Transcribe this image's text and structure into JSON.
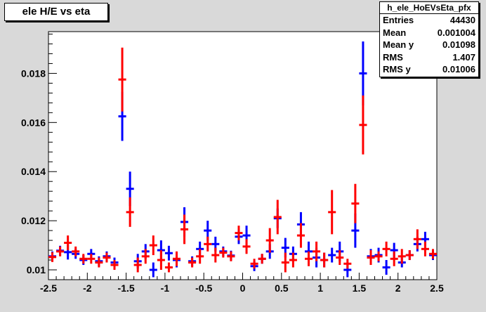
{
  "chart_data": {
    "type": "scatter",
    "title": "ele H/E vs eta",
    "xlabel": "",
    "ylabel": "",
    "xlim": [
      -2.5,
      2.5
    ],
    "ylim": [
      0.0096,
      0.0197
    ],
    "xticks": [
      "-2.5",
      "-2",
      "-1.5",
      "-1",
      "-0.5",
      "0",
      "0.5",
      "1",
      "1.5",
      "2",
      "2.5"
    ],
    "yticks": [
      "0.01",
      "0.012",
      "0.014",
      "0.016",
      "0.018"
    ],
    "grid": false,
    "legend": "none",
    "series": [
      {
        "color": "#0000ff",
        "points": [
          {
            "x": -2.45,
            "y": 0.01055,
            "e": 0.0002
          },
          {
            "x": -2.35,
            "y": 0.01078,
            "e": 0.0002
          },
          {
            "x": -2.25,
            "y": 0.01072,
            "e": 0.0003
          },
          {
            "x": -2.15,
            "y": 0.01065,
            "e": 0.0002
          },
          {
            "x": -2.05,
            "y": 0.0104,
            "e": 0.0002
          },
          {
            "x": -1.95,
            "y": 0.01065,
            "e": 0.0002
          },
          {
            "x": -1.85,
            "y": 0.01035,
            "e": 0.0002
          },
          {
            "x": -1.75,
            "y": 0.01055,
            "e": 0.0002
          },
          {
            "x": -1.65,
            "y": 0.0103,
            "e": 0.0002
          },
          {
            "x": -1.55,
            "y": 0.01625,
            "e": 0.001
          },
          {
            "x": -1.45,
            "y": 0.0133,
            "e": 0.0007
          },
          {
            "x": -1.35,
            "y": 0.01035,
            "e": 0.0003
          },
          {
            "x": -1.25,
            "y": 0.01075,
            "e": 0.0003
          },
          {
            "x": -1.15,
            "y": 0.01,
            "e": 0.0003
          },
          {
            "x": -1.05,
            "y": 0.0108,
            "e": 0.0004
          },
          {
            "x": -0.95,
            "y": 0.01068,
            "e": 0.0003
          },
          {
            "x": -0.85,
            "y": 0.0104,
            "e": 0.0003
          },
          {
            "x": -0.75,
            "y": 0.01195,
            "e": 0.0006
          },
          {
            "x": -0.65,
            "y": 0.01035,
            "e": 0.0002
          },
          {
            "x": -0.55,
            "y": 0.01085,
            "e": 0.0003
          },
          {
            "x": -0.45,
            "y": 0.0116,
            "e": 0.0004
          },
          {
            "x": -0.35,
            "y": 0.01105,
            "e": 0.0003
          },
          {
            "x": -0.25,
            "y": 0.01075,
            "e": 0.0002
          },
          {
            "x": -0.15,
            "y": 0.01058,
            "e": 0.0002
          },
          {
            "x": -0.05,
            "y": 0.01135,
            "e": 0.0003
          },
          {
            "x": 0.05,
            "y": 0.0114,
            "e": 0.0004
          },
          {
            "x": 0.15,
            "y": 0.01015,
            "e": 0.0002
          },
          {
            "x": 0.25,
            "y": 0.01045,
            "e": 0.0002
          },
          {
            "x": 0.35,
            "y": 0.01075,
            "e": 0.0003
          },
          {
            "x": 0.45,
            "y": 0.0121,
            "e": 0.0004
          },
          {
            "x": 0.55,
            "y": 0.0109,
            "e": 0.0004
          },
          {
            "x": 0.65,
            "y": 0.01065,
            "e": 0.0003
          },
          {
            "x": 0.75,
            "y": 0.01185,
            "e": 0.0005
          },
          {
            "x": 0.85,
            "y": 0.01075,
            "e": 0.0004
          },
          {
            "x": 0.95,
            "y": 0.0105,
            "e": 0.0004
          },
          {
            "x": 1.05,
            "y": 0.0104,
            "e": 0.0003
          },
          {
            "x": 1.15,
            "y": 0.0106,
            "e": 0.0003
          },
          {
            "x": 1.25,
            "y": 0.01075,
            "e": 0.0004
          },
          {
            "x": 1.35,
            "y": 0.01,
            "e": 0.0003
          },
          {
            "x": 1.45,
            "y": 0.0116,
            "e": 0.0007
          },
          {
            "x": 1.55,
            "y": 0.018,
            "e": 0.0013
          },
          {
            "x": 1.65,
            "y": 0.01055,
            "e": 0.0003
          },
          {
            "x": 1.75,
            "y": 0.0106,
            "e": 0.0003
          },
          {
            "x": 1.85,
            "y": 0.0101,
            "e": 0.0003
          },
          {
            "x": 1.95,
            "y": 0.0108,
            "e": 0.0003
          },
          {
            "x": 2.05,
            "y": 0.0103,
            "e": 0.0002
          },
          {
            "x": 2.15,
            "y": 0.0106,
            "e": 0.0002
          },
          {
            "x": 2.25,
            "y": 0.01105,
            "e": 0.0003
          },
          {
            "x": 2.35,
            "y": 0.01125,
            "e": 0.0003
          },
          {
            "x": 2.45,
            "y": 0.0106,
            "e": 0.0002
          }
        ]
      },
      {
        "color": "#ff0000",
        "points": [
          {
            "x": -2.45,
            "y": 0.01052,
            "e": 0.0002
          },
          {
            "x": -2.35,
            "y": 0.01075,
            "e": 0.0002
          },
          {
            "x": -2.25,
            "y": 0.0111,
            "e": 0.0003
          },
          {
            "x": -2.15,
            "y": 0.01075,
            "e": 0.0002
          },
          {
            "x": -2.05,
            "y": 0.01045,
            "e": 0.0002
          },
          {
            "x": -1.95,
            "y": 0.01045,
            "e": 0.0002
          },
          {
            "x": -1.85,
            "y": 0.0103,
            "e": 0.0002
          },
          {
            "x": -1.75,
            "y": 0.0105,
            "e": 0.0002
          },
          {
            "x": -1.65,
            "y": 0.0102,
            "e": 0.0002
          },
          {
            "x": -1.55,
            "y": 0.01775,
            "e": 0.0013
          },
          {
            "x": -1.45,
            "y": 0.01235,
            "e": 0.0006
          },
          {
            "x": -1.35,
            "y": 0.0102,
            "e": 0.0003
          },
          {
            "x": -1.25,
            "y": 0.01055,
            "e": 0.0003
          },
          {
            "x": -1.15,
            "y": 0.011,
            "e": 0.0004
          },
          {
            "x": -1.05,
            "y": 0.0104,
            "e": 0.0004
          },
          {
            "x": -0.95,
            "y": 0.0101,
            "e": 0.0002
          },
          {
            "x": -0.85,
            "y": 0.01045,
            "e": 0.0003
          },
          {
            "x": -0.75,
            "y": 0.01165,
            "e": 0.0006
          },
          {
            "x": -0.65,
            "y": 0.0103,
            "e": 0.0002
          },
          {
            "x": -0.55,
            "y": 0.01055,
            "e": 0.0003
          },
          {
            "x": -0.45,
            "y": 0.01105,
            "e": 0.0003
          },
          {
            "x": -0.35,
            "y": 0.0106,
            "e": 0.0003
          },
          {
            "x": -0.25,
            "y": 0.0107,
            "e": 0.0002
          },
          {
            "x": -0.15,
            "y": 0.01055,
            "e": 0.0002
          },
          {
            "x": -0.05,
            "y": 0.0115,
            "e": 0.0003
          },
          {
            "x": 0.05,
            "y": 0.01095,
            "e": 0.0003
          },
          {
            "x": 0.15,
            "y": 0.01025,
            "e": 0.0002
          },
          {
            "x": 0.25,
            "y": 0.01045,
            "e": 0.0002
          },
          {
            "x": 0.35,
            "y": 0.0112,
            "e": 0.0005
          },
          {
            "x": 0.45,
            "y": 0.01215,
            "e": 0.0007
          },
          {
            "x": 0.55,
            "y": 0.0103,
            "e": 0.0004
          },
          {
            "x": 0.65,
            "y": 0.0104,
            "e": 0.0003
          },
          {
            "x": 0.75,
            "y": 0.0114,
            "e": 0.0005
          },
          {
            "x": 0.85,
            "y": 0.01045,
            "e": 0.0003
          },
          {
            "x": 0.95,
            "y": 0.01075,
            "e": 0.0004
          },
          {
            "x": 1.05,
            "y": 0.0104,
            "e": 0.0003
          },
          {
            "x": 1.15,
            "y": 0.01235,
            "e": 0.0009
          },
          {
            "x": 1.25,
            "y": 0.0105,
            "e": 0.0003
          },
          {
            "x": 1.35,
            "y": 0.01025,
            "e": 0.0002
          },
          {
            "x": 1.45,
            "y": 0.0127,
            "e": 0.0008
          },
          {
            "x": 1.55,
            "y": 0.0159,
            "e": 0.0012
          },
          {
            "x": 1.65,
            "y": 0.0105,
            "e": 0.0003
          },
          {
            "x": 1.75,
            "y": 0.01055,
            "e": 0.0002
          },
          {
            "x": 1.85,
            "y": 0.01085,
            "e": 0.0003
          },
          {
            "x": 1.95,
            "y": 0.01045,
            "e": 0.0003
          },
          {
            "x": 2.05,
            "y": 0.01055,
            "e": 0.0003
          },
          {
            "x": 2.15,
            "y": 0.0106,
            "e": 0.0002
          },
          {
            "x": 2.25,
            "y": 0.01125,
            "e": 0.0004
          },
          {
            "x": 2.35,
            "y": 0.01085,
            "e": 0.0003
          },
          {
            "x": 2.45,
            "y": 0.01065,
            "e": 0.0002
          }
        ]
      }
    ]
  },
  "stats_box": {
    "title": "h_ele_HoEVsEta_pfx",
    "rows": [
      {
        "label": "Entries",
        "value": "44430"
      },
      {
        "label": "Mean",
        "value": "0.001004"
      },
      {
        "label": "Mean y",
        "value": "0.01098"
      },
      {
        "label": "RMS",
        "value": "1.407"
      },
      {
        "label": "RMS y",
        "value": "0.01006"
      }
    ]
  }
}
